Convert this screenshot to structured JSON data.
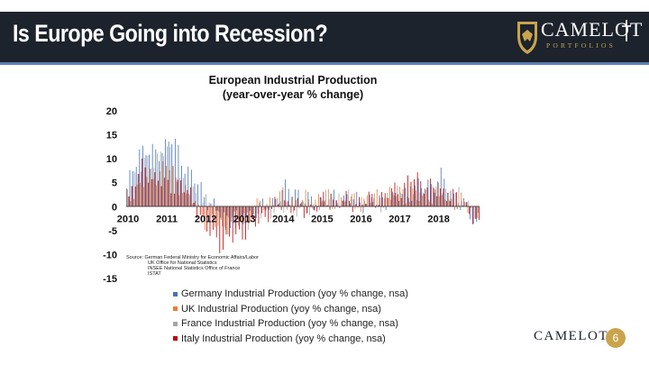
{
  "slide": {
    "title": "Is Europe Going into Recession?",
    "page_number": "6"
  },
  "brand": {
    "name": "CAMELOT",
    "tagline": "PORTFOLIOS",
    "footer_name": "CAMELOT",
    "colors": {
      "header": "#1c232d",
      "accent": "#5b7fb0",
      "gold": "#c9a44c"
    }
  },
  "chart_data": {
    "type": "bar",
    "title": "European Industrial Production",
    "subtitle": "(year-over-year % change)",
    "ylim": [
      -15,
      20
    ],
    "yticks": [
      "20",
      "15",
      "10",
      "5",
      "0",
      "-5",
      "-10",
      "-15"
    ],
    "ytick_values": [
      20,
      15,
      10,
      5,
      0,
      -5,
      -10,
      -15
    ],
    "xlim": [
      2010,
      2019.1
    ],
    "xticks": [
      "2010",
      "2011",
      "2012",
      "2013",
      "2014",
      "2015",
      "2016",
      "2017",
      "2018"
    ],
    "xtick_values": [
      2010,
      2011,
      2012,
      2013,
      2014,
      2015,
      2016,
      2017,
      2018
    ],
    "source_lines": [
      "Source: German Federal Ministry for Economic Affairs/Labor",
      "UK Office for National Statistics",
      "INSEE National Statistics Office of France",
      "ISTAT"
    ],
    "series": [
      {
        "name": "Germany Industrial Production (yoy % change, nsa)",
        "color": "#4472c4",
        "anchors": [
          [
            2010.0,
            3
          ],
          [
            2010.3,
            12
          ],
          [
            2010.6,
            11
          ],
          [
            2010.9,
            12
          ],
          [
            2011.2,
            14
          ],
          [
            2011.6,
            7
          ],
          [
            2011.9,
            4
          ],
          [
            2012.2,
            0
          ],
          [
            2012.5,
            -2
          ],
          [
            2012.9,
            -3
          ],
          [
            2013.3,
            -1
          ],
          [
            2013.6,
            0
          ],
          [
            2014.0,
            3
          ],
          [
            2014.3,
            4
          ],
          [
            2014.6,
            1
          ],
          [
            2015.0,
            1
          ],
          [
            2015.5,
            2
          ],
          [
            2016.0,
            1
          ],
          [
            2016.5,
            1
          ],
          [
            2017.0,
            2
          ],
          [
            2017.5,
            4
          ],
          [
            2017.9,
            5
          ],
          [
            2018.1,
            6
          ],
          [
            2018.5,
            1
          ],
          [
            2018.8,
            -1
          ],
          [
            2019.0,
            -4
          ]
        ]
      },
      {
        "name": "UK Industrial Production (yoy % change, nsa)",
        "color": "#ed7d31",
        "anchors": [
          [
            2010.0,
            2
          ],
          [
            2010.4,
            5
          ],
          [
            2010.8,
            7
          ],
          [
            2011.0,
            9
          ],
          [
            2011.3,
            5
          ],
          [
            2011.7,
            1
          ],
          [
            2012.0,
            -3
          ],
          [
            2012.4,
            -4
          ],
          [
            2012.8,
            -3
          ],
          [
            2013.2,
            -1
          ],
          [
            2013.6,
            1
          ],
          [
            2014.0,
            2
          ],
          [
            2014.5,
            1
          ],
          [
            2015.0,
            2
          ],
          [
            2015.5,
            1
          ],
          [
            2016.0,
            1
          ],
          [
            2016.5,
            2
          ],
          [
            2017.0,
            3
          ],
          [
            2017.5,
            2
          ],
          [
            2018.0,
            3
          ],
          [
            2018.5,
            1
          ],
          [
            2019.0,
            -1
          ]
        ]
      },
      {
        "name": "France Industrial Production (yoy % change, nsa)",
        "color": "#a5a5a5",
        "anchors": [
          [
            2010.0,
            4
          ],
          [
            2010.3,
            8
          ],
          [
            2010.7,
            10
          ],
          [
            2011.0,
            12
          ],
          [
            2011.5,
            3
          ],
          [
            2011.9,
            2
          ],
          [
            2012.3,
            -2
          ],
          [
            2012.7,
            -4
          ],
          [
            2013.0,
            -3
          ],
          [
            2013.5,
            -1
          ],
          [
            2014.0,
            0
          ],
          [
            2014.5,
            -1
          ],
          [
            2015.0,
            1
          ],
          [
            2015.5,
            2
          ],
          [
            2016.0,
            1
          ],
          [
            2016.5,
            1
          ],
          [
            2017.0,
            3
          ],
          [
            2017.5,
            2
          ],
          [
            2018.0,
            3
          ],
          [
            2018.5,
            2
          ],
          [
            2019.0,
            -1
          ]
        ]
      },
      {
        "name": "Italy Industrial Production (yoy % change, nsa)",
        "color": "#c00000",
        "anchors": [
          [
            2010.0,
            2
          ],
          [
            2010.3,
            8
          ],
          [
            2010.7,
            6
          ],
          [
            2011.0,
            4
          ],
          [
            2011.3,
            5
          ],
          [
            2011.7,
            1
          ],
          [
            2012.0,
            -5
          ],
          [
            2012.4,
            -8
          ],
          [
            2012.8,
            -6
          ],
          [
            2013.2,
            -4
          ],
          [
            2013.6,
            -1
          ],
          [
            2014.0,
            1
          ],
          [
            2014.5,
            -1
          ],
          [
            2015.0,
            1
          ],
          [
            2015.5,
            1
          ],
          [
            2016.0,
            1
          ],
          [
            2016.5,
            2
          ],
          [
            2017.0,
            4
          ],
          [
            2017.3,
            6
          ],
          [
            2017.6,
            5
          ],
          [
            2017.9,
            3
          ],
          [
            2018.2,
            3
          ],
          [
            2018.5,
            1
          ],
          [
            2018.8,
            -1
          ],
          [
            2019.0,
            -5
          ]
        ]
      }
    ]
  }
}
